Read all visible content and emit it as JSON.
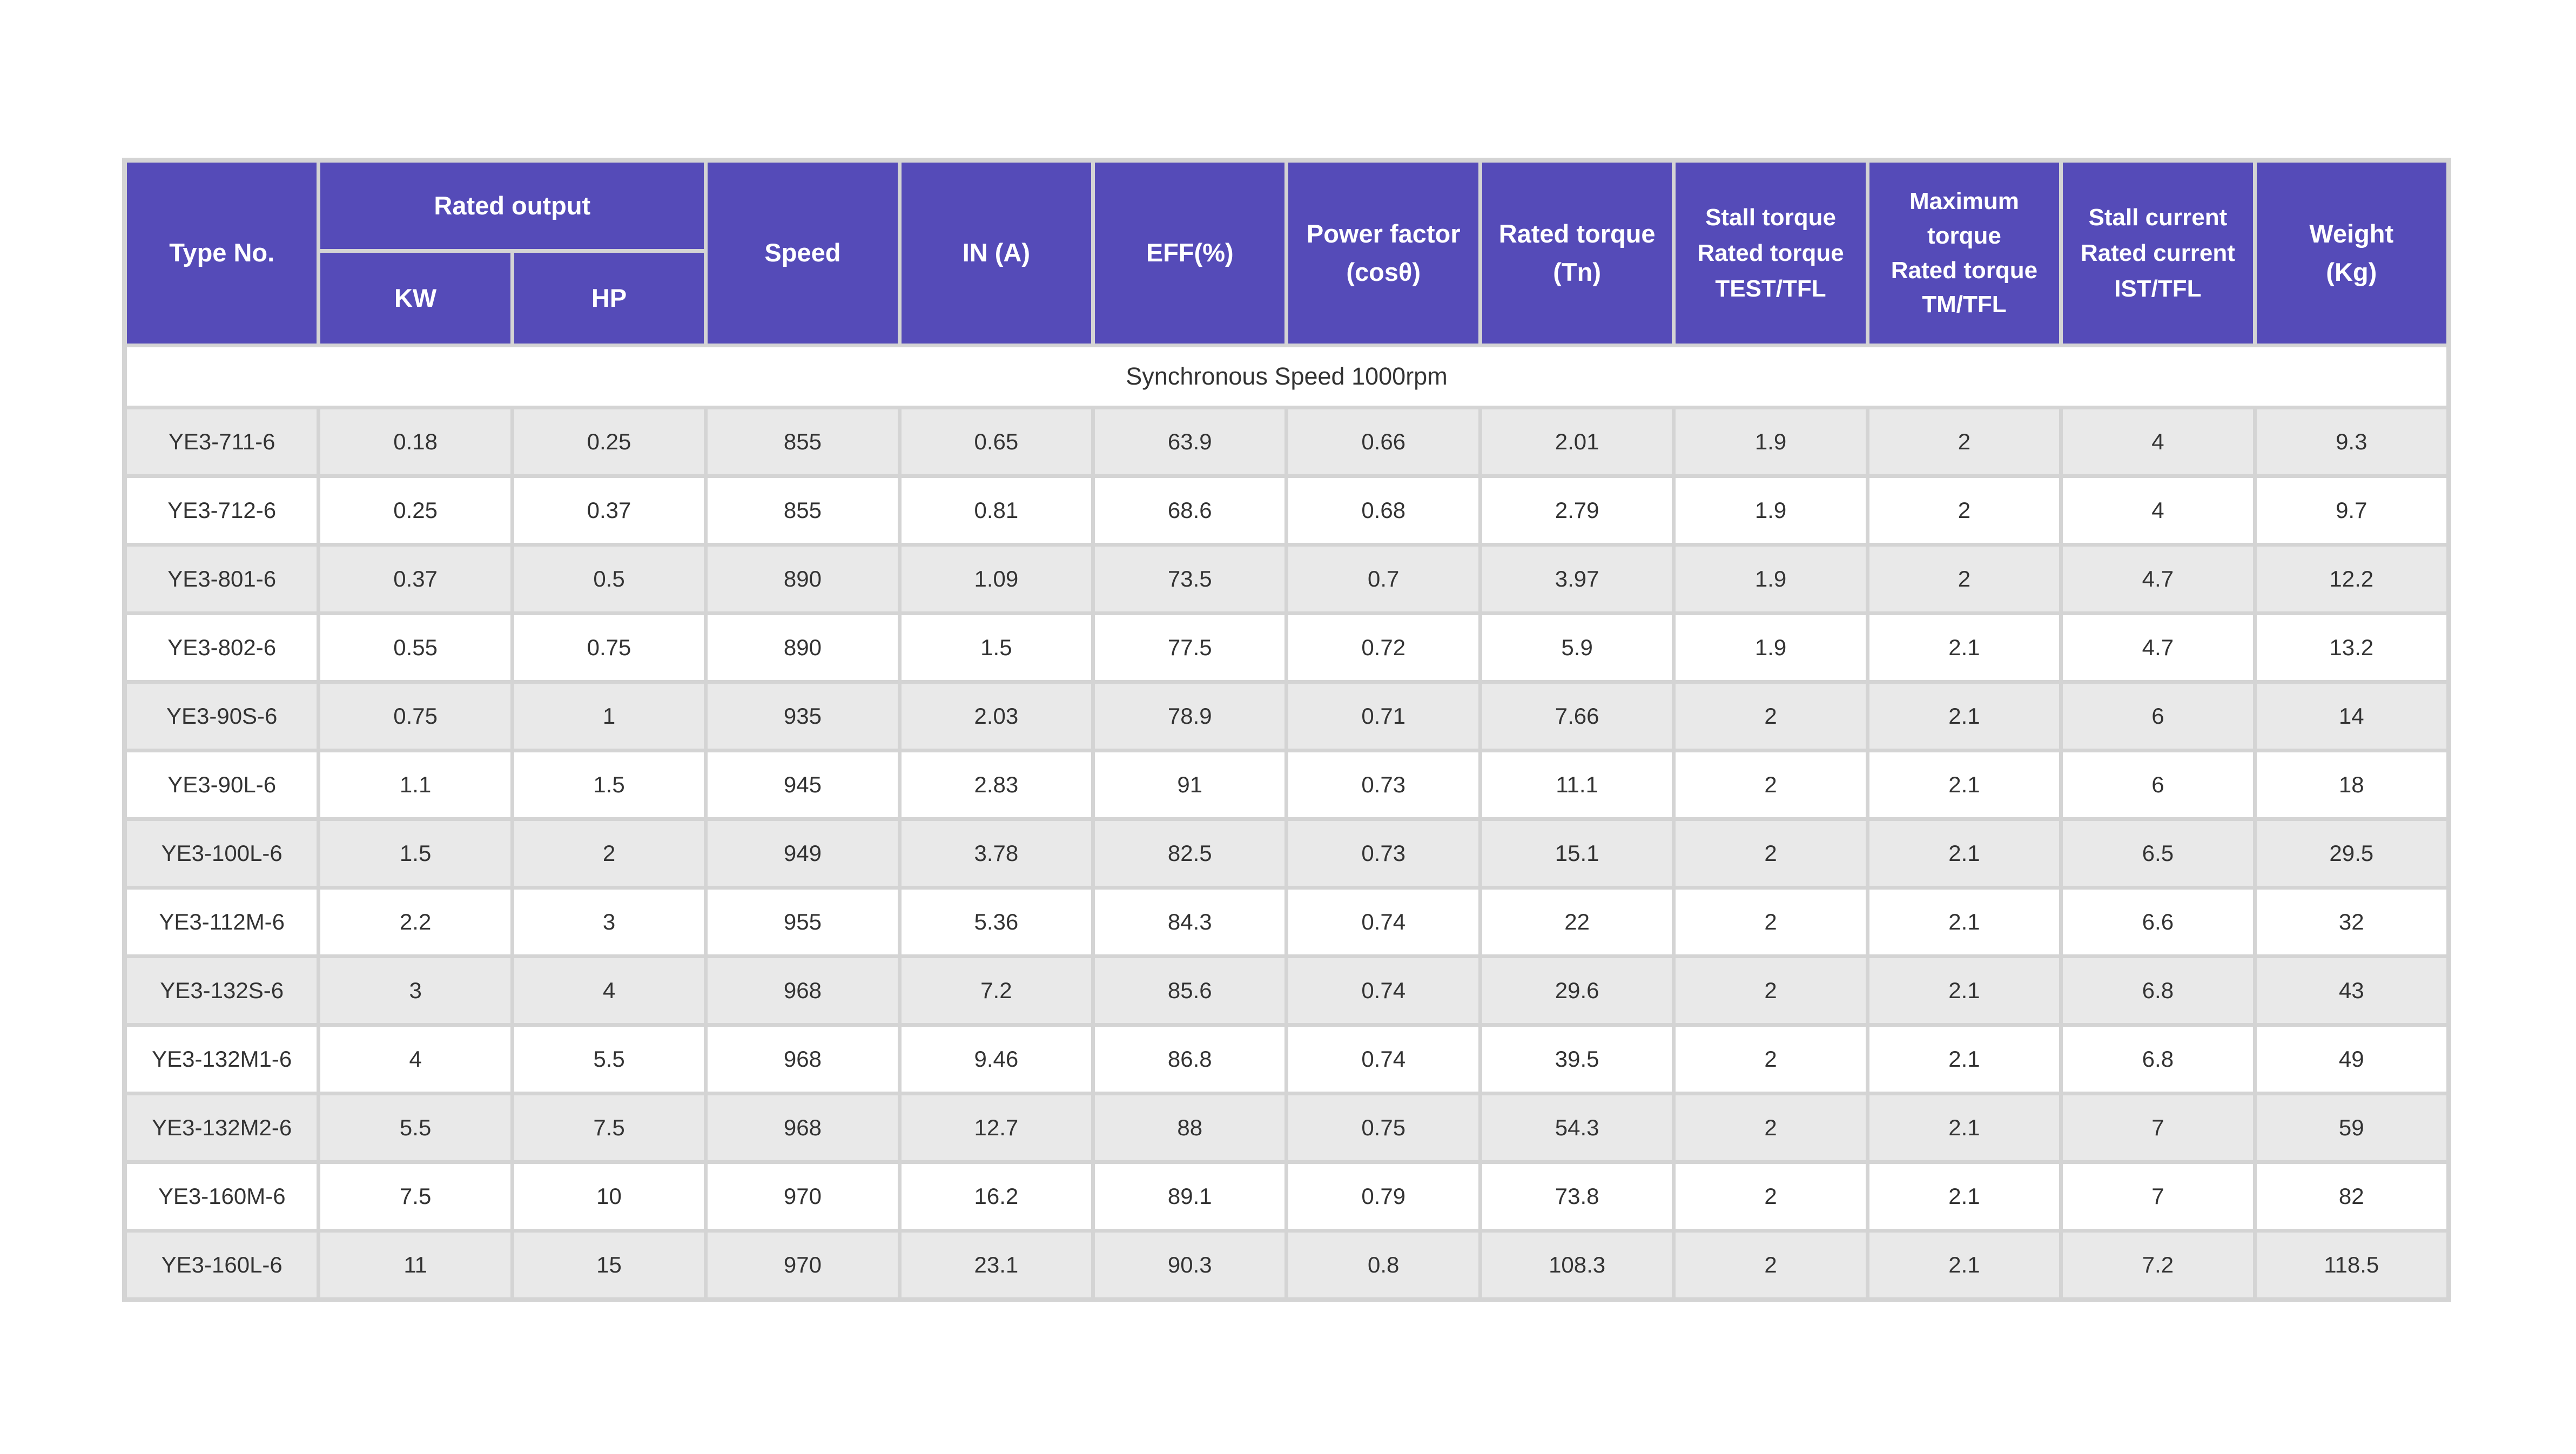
{
  "table": {
    "colors": {
      "header_bg": "#554BB8",
      "header_text": "#ffffff",
      "grid_gap": "#d4d4d4",
      "row_odd_bg": "#e9e9e9",
      "row_even_bg": "#ffffff",
      "body_text": "#333333"
    },
    "header": {
      "type_no": "Type No.",
      "rated_output": "Rated output",
      "kw": "KW",
      "hp": "HP",
      "speed": "Speed",
      "in_a": "IN (A)",
      "eff": "EFF(%)",
      "power_factor": "Power factor\n(cosθ)",
      "rated_torque": "Rated torque\n(Tn)",
      "stall_torque": "Stall torque\nRated torque\nTEST/TFL",
      "maximum_torque": "Maximum\ntorque\nRated torque\nTM/TFL",
      "stall_current": "Stall current\nRated current\nIST/TFL",
      "weight": "Weight\n(Kg)"
    },
    "section_title": "Synchronous Speed 1000rpm",
    "rows": [
      [
        "YE3-711-6",
        "0.18",
        "0.25",
        "855",
        "0.65",
        "63.9",
        "0.66",
        "2.01",
        "1.9",
        "2",
        "4",
        "9.3"
      ],
      [
        "YE3-712-6",
        "0.25",
        "0.37",
        "855",
        "0.81",
        "68.6",
        "0.68",
        "2.79",
        "1.9",
        "2",
        "4",
        "9.7"
      ],
      [
        "YE3-801-6",
        "0.37",
        "0.5",
        "890",
        "1.09",
        "73.5",
        "0.7",
        "3.97",
        "1.9",
        "2",
        "4.7",
        "12.2"
      ],
      [
        "YE3-802-6",
        "0.55",
        "0.75",
        "890",
        "1.5",
        "77.5",
        "0.72",
        "5.9",
        "1.9",
        "2.1",
        "4.7",
        "13.2"
      ],
      [
        "YE3-90S-6",
        "0.75",
        "1",
        "935",
        "2.03",
        "78.9",
        "0.71",
        "7.66",
        "2",
        "2.1",
        "6",
        "14"
      ],
      [
        "YE3-90L-6",
        "1.1",
        "1.5",
        "945",
        "2.83",
        "91",
        "0.73",
        "11.1",
        "2",
        "2.1",
        "6",
        "18"
      ],
      [
        "YE3-100L-6",
        "1.5",
        "2",
        "949",
        "3.78",
        "82.5",
        "0.73",
        "15.1",
        "2",
        "2.1",
        "6.5",
        "29.5"
      ],
      [
        "YE3-112M-6",
        "2.2",
        "3",
        "955",
        "5.36",
        "84.3",
        "0.74",
        "22",
        "2",
        "2.1",
        "6.6",
        "32"
      ],
      [
        "YE3-132S-6",
        "3",
        "4",
        "968",
        "7.2",
        "85.6",
        "0.74",
        "29.6",
        "2",
        "2.1",
        "6.8",
        "43"
      ],
      [
        "YE3-132M1-6",
        "4",
        "5.5",
        "968",
        "9.46",
        "86.8",
        "0.74",
        "39.5",
        "2",
        "2.1",
        "6.8",
        "49"
      ],
      [
        "YE3-132M2-6",
        "5.5",
        "7.5",
        "968",
        "12.7",
        "88",
        "0.75",
        "54.3",
        "2",
        "2.1",
        "7",
        "59"
      ],
      [
        "YE3-160M-6",
        "7.5",
        "10",
        "970",
        "16.2",
        "89.1",
        "0.79",
        "73.8",
        "2",
        "2.1",
        "7",
        "82"
      ],
      [
        "YE3-160L-6",
        "11",
        "15",
        "970",
        "23.1",
        "90.3",
        "0.8",
        "108.3",
        "2",
        "2.1",
        "7.2",
        "118.5"
      ]
    ]
  }
}
